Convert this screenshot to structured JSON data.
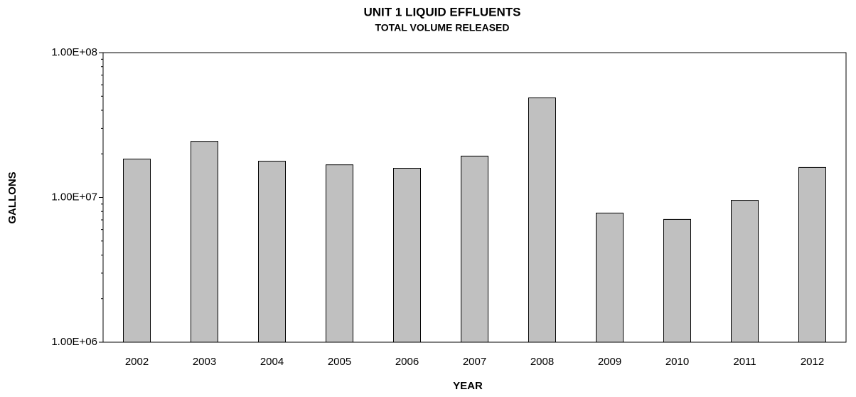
{
  "chart_data": {
    "type": "bar",
    "title": "UNIT 1 LIQUID EFFLUENTS",
    "subtitle": "TOTAL VOLUME RELEASED",
    "x_label": "YEAR",
    "y_label": "GALLONS",
    "categories": [
      "2002",
      "2003",
      "2004",
      "2005",
      "2006",
      "2007",
      "2008",
      "2009",
      "2010",
      "2011",
      "2012"
    ],
    "values": [
      18400000,
      24400000,
      17800000,
      16800000,
      15900000,
      19300000,
      48700000,
      7800000,
      7050000,
      9550000,
      16100000
    ],
    "color": "#c0c0c0",
    "log_scale": true,
    "ylim": [
      1000000,
      100000000
    ],
    "yticks": [
      {
        "value": 1000000,
        "label": "1.00E+06"
      },
      {
        "value": 10000000,
        "label": "1.00E+07"
      },
      {
        "value": 100000000,
        "label": "1.00E+08"
      }
    ],
    "grid": false
  }
}
